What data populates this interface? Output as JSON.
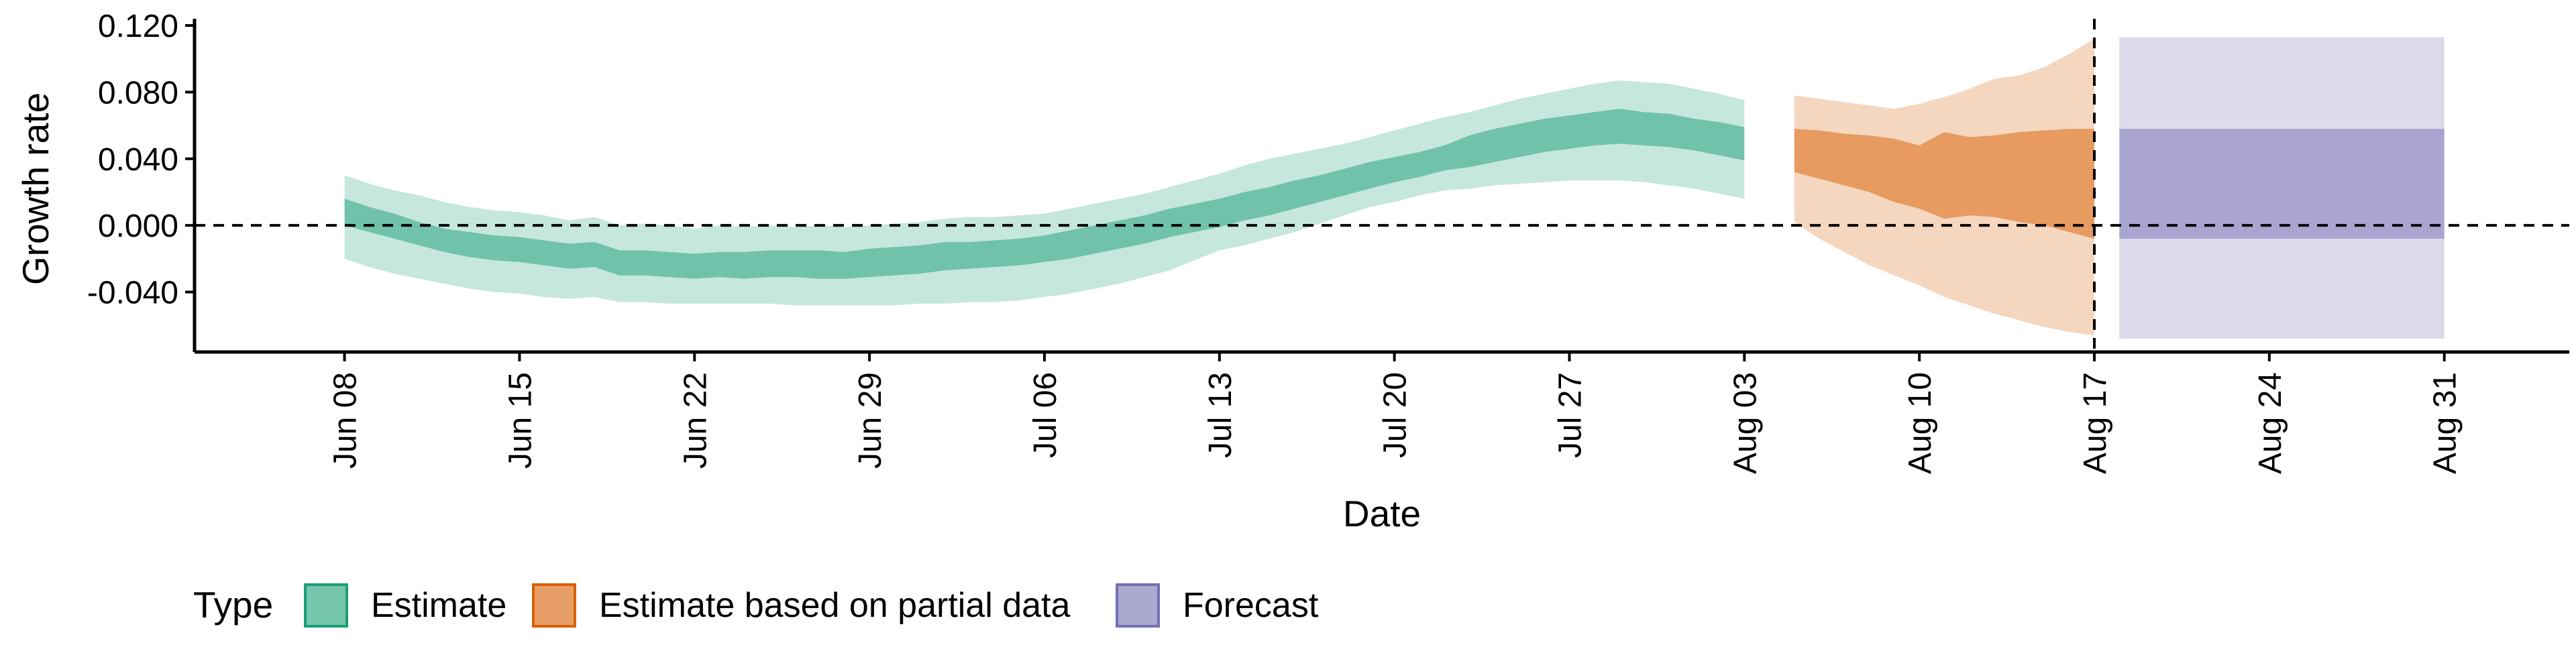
{
  "chart_data": {
    "type": "area",
    "title": "",
    "xlabel": "Date",
    "ylabel": "Growth rate",
    "ylim": [
      -0.076,
      0.12
    ],
    "xlim": [
      "2020-06-02",
      "2020-09-05"
    ],
    "grid": false,
    "reference_lines": {
      "horizontal_y": 0.0,
      "vertical_x": "2020-08-17"
    },
    "y_ticks": [
      {
        "value": 0.12,
        "label": "0.120"
      },
      {
        "value": 0.08,
        "label": "0.080"
      },
      {
        "value": 0.04,
        "label": "0.040"
      },
      {
        "value": 0.0,
        "label": "0.000"
      },
      {
        "value": -0.04,
        "label": "-0.040"
      }
    ],
    "x_ticks": [
      {
        "value": "2020-06-08",
        "label": "Jun 08"
      },
      {
        "value": "2020-06-15",
        "label": "Jun 15"
      },
      {
        "value": "2020-06-22",
        "label": "Jun 22"
      },
      {
        "value": "2020-06-29",
        "label": "Jun 29"
      },
      {
        "value": "2020-07-06",
        "label": "Jul 06"
      },
      {
        "value": "2020-07-13",
        "label": "Jul 13"
      },
      {
        "value": "2020-07-20",
        "label": "Jul 20"
      },
      {
        "value": "2020-07-27",
        "label": "Jul 27"
      },
      {
        "value": "2020-08-03",
        "label": "Aug 03"
      },
      {
        "value": "2020-08-10",
        "label": "Aug 10"
      },
      {
        "value": "2020-08-17",
        "label": "Aug 17"
      },
      {
        "value": "2020-08-24",
        "label": "Aug 24"
      },
      {
        "value": "2020-08-31",
        "label": "Aug 31"
      }
    ],
    "legend": {
      "title": "Type",
      "position": "bottom",
      "entries": [
        {
          "label": "Estimate",
          "color": "#1b9e77"
        },
        {
          "label": "Estimate based on partial data",
          "color": "#d95f02"
        },
        {
          "label": "Forecast",
          "color": "#7570b3"
        }
      ]
    },
    "series": [
      {
        "type_key": "estimate",
        "color": "#1b9e77",
        "dates": [
          "2020-06-08",
          "2020-06-09",
          "2020-06-10",
          "2020-06-11",
          "2020-06-12",
          "2020-06-13",
          "2020-06-14",
          "2020-06-15",
          "2020-06-16",
          "2020-06-17",
          "2020-06-18",
          "2020-06-19",
          "2020-06-20",
          "2020-06-21",
          "2020-06-22",
          "2020-06-23",
          "2020-06-24",
          "2020-06-25",
          "2020-06-26",
          "2020-06-27",
          "2020-06-28",
          "2020-06-29",
          "2020-06-30",
          "2020-07-01",
          "2020-07-02",
          "2020-07-03",
          "2020-07-04",
          "2020-07-05",
          "2020-07-06",
          "2020-07-07",
          "2020-07-08",
          "2020-07-09",
          "2020-07-10",
          "2020-07-11",
          "2020-07-12",
          "2020-07-13",
          "2020-07-14",
          "2020-07-15",
          "2020-07-16",
          "2020-07-17",
          "2020-07-18",
          "2020-07-19",
          "2020-07-20",
          "2020-07-21",
          "2020-07-22",
          "2020-07-23",
          "2020-07-24",
          "2020-07-25",
          "2020-07-26",
          "2020-07-27",
          "2020-07-28",
          "2020-07-29",
          "2020-07-30",
          "2020-07-31",
          "2020-08-01",
          "2020-08-02",
          "2020-08-03"
        ],
        "outer_upper": [
          0.03,
          0.025,
          0.021,
          0.018,
          0.014,
          0.011,
          0.009,
          0.008,
          0.006,
          0.003,
          0.005,
          0.0,
          0.001,
          0.0,
          -0.002,
          0.0,
          -0.001,
          0.0,
          -0.001,
          0.0,
          -0.001,
          0.0,
          0.001,
          0.002,
          0.004,
          0.005,
          0.005,
          0.006,
          0.007,
          0.01,
          0.013,
          0.016,
          0.019,
          0.023,
          0.027,
          0.031,
          0.036,
          0.04,
          0.043,
          0.046,
          0.049,
          0.053,
          0.057,
          0.061,
          0.065,
          0.068,
          0.072,
          0.076,
          0.079,
          0.082,
          0.085,
          0.087,
          0.086,
          0.085,
          0.082,
          0.079,
          0.075
        ],
        "inner_upper": [
          0.016,
          0.011,
          0.007,
          0.002,
          -0.002,
          -0.004,
          -0.006,
          -0.007,
          -0.009,
          -0.011,
          -0.01,
          -0.015,
          -0.015,
          -0.016,
          -0.017,
          -0.016,
          -0.016,
          -0.015,
          -0.015,
          -0.015,
          -0.016,
          -0.014,
          -0.013,
          -0.012,
          -0.01,
          -0.01,
          -0.009,
          -0.008,
          -0.006,
          -0.003,
          0.0,
          0.003,
          0.006,
          0.01,
          0.013,
          0.016,
          0.02,
          0.023,
          0.027,
          0.03,
          0.034,
          0.038,
          0.041,
          0.044,
          0.048,
          0.054,
          0.058,
          0.061,
          0.064,
          0.066,
          0.068,
          0.07,
          0.068,
          0.067,
          0.064,
          0.062,
          0.059
        ],
        "inner_lower": [
          0.0,
          -0.004,
          -0.008,
          -0.012,
          -0.016,
          -0.019,
          -0.021,
          -0.022,
          -0.024,
          -0.026,
          -0.025,
          -0.03,
          -0.03,
          -0.031,
          -0.032,
          -0.031,
          -0.032,
          -0.031,
          -0.031,
          -0.032,
          -0.032,
          -0.031,
          -0.03,
          -0.029,
          -0.027,
          -0.026,
          -0.025,
          -0.024,
          -0.022,
          -0.02,
          -0.017,
          -0.014,
          -0.011,
          -0.007,
          -0.004,
          -0.001,
          0.003,
          0.006,
          0.01,
          0.014,
          0.018,
          0.022,
          0.026,
          0.029,
          0.033,
          0.035,
          0.038,
          0.041,
          0.044,
          0.046,
          0.048,
          0.049,
          0.048,
          0.047,
          0.045,
          0.042,
          0.039
        ],
        "outer_lower": [
          -0.02,
          -0.025,
          -0.029,
          -0.032,
          -0.035,
          -0.038,
          -0.04,
          -0.041,
          -0.043,
          -0.044,
          -0.043,
          -0.046,
          -0.046,
          -0.047,
          -0.047,
          -0.047,
          -0.047,
          -0.047,
          -0.048,
          -0.048,
          -0.048,
          -0.048,
          -0.048,
          -0.047,
          -0.047,
          -0.046,
          -0.046,
          -0.045,
          -0.043,
          -0.041,
          -0.038,
          -0.035,
          -0.031,
          -0.027,
          -0.021,
          -0.015,
          -0.012,
          -0.008,
          -0.004,
          0.001,
          0.006,
          0.011,
          0.014,
          0.018,
          0.021,
          0.022,
          0.024,
          0.025,
          0.026,
          0.027,
          0.027,
          0.027,
          0.026,
          0.024,
          0.022,
          0.019,
          0.016
        ]
      },
      {
        "type_key": "partial",
        "color": "#d95f02",
        "dates": [
          "2020-08-05",
          "2020-08-06",
          "2020-08-07",
          "2020-08-08",
          "2020-08-09",
          "2020-08-10",
          "2020-08-11",
          "2020-08-12",
          "2020-08-13",
          "2020-08-14",
          "2020-08-15",
          "2020-08-16",
          "2020-08-17"
        ],
        "outer_upper": [
          0.078,
          0.076,
          0.074,
          0.072,
          0.07,
          0.073,
          0.077,
          0.082,
          0.088,
          0.09,
          0.095,
          0.103,
          0.112
        ],
        "inner_upper": [
          0.058,
          0.057,
          0.055,
          0.054,
          0.052,
          0.048,
          0.056,
          0.053,
          0.054,
          0.056,
          0.057,
          0.058,
          0.058
        ],
        "inner_lower": [
          0.032,
          0.028,
          0.024,
          0.02,
          0.014,
          0.01,
          0.004,
          0.006,
          0.005,
          0.002,
          0.0,
          -0.004,
          -0.008
        ],
        "outer_lower": [
          0.002,
          -0.008,
          -0.016,
          -0.024,
          -0.03,
          -0.036,
          -0.043,
          -0.048,
          -0.053,
          -0.057,
          -0.061,
          -0.064,
          -0.066
        ]
      },
      {
        "type_key": "forecast",
        "color": "#7570b3",
        "dates": [
          "2020-08-18",
          "2020-08-31"
        ],
        "outer_upper": [
          0.113,
          0.113
        ],
        "inner_upper": [
          0.058,
          0.058
        ],
        "inner_lower": [
          -0.008,
          -0.008
        ],
        "outer_lower": [
          -0.068,
          -0.068
        ]
      }
    ]
  }
}
